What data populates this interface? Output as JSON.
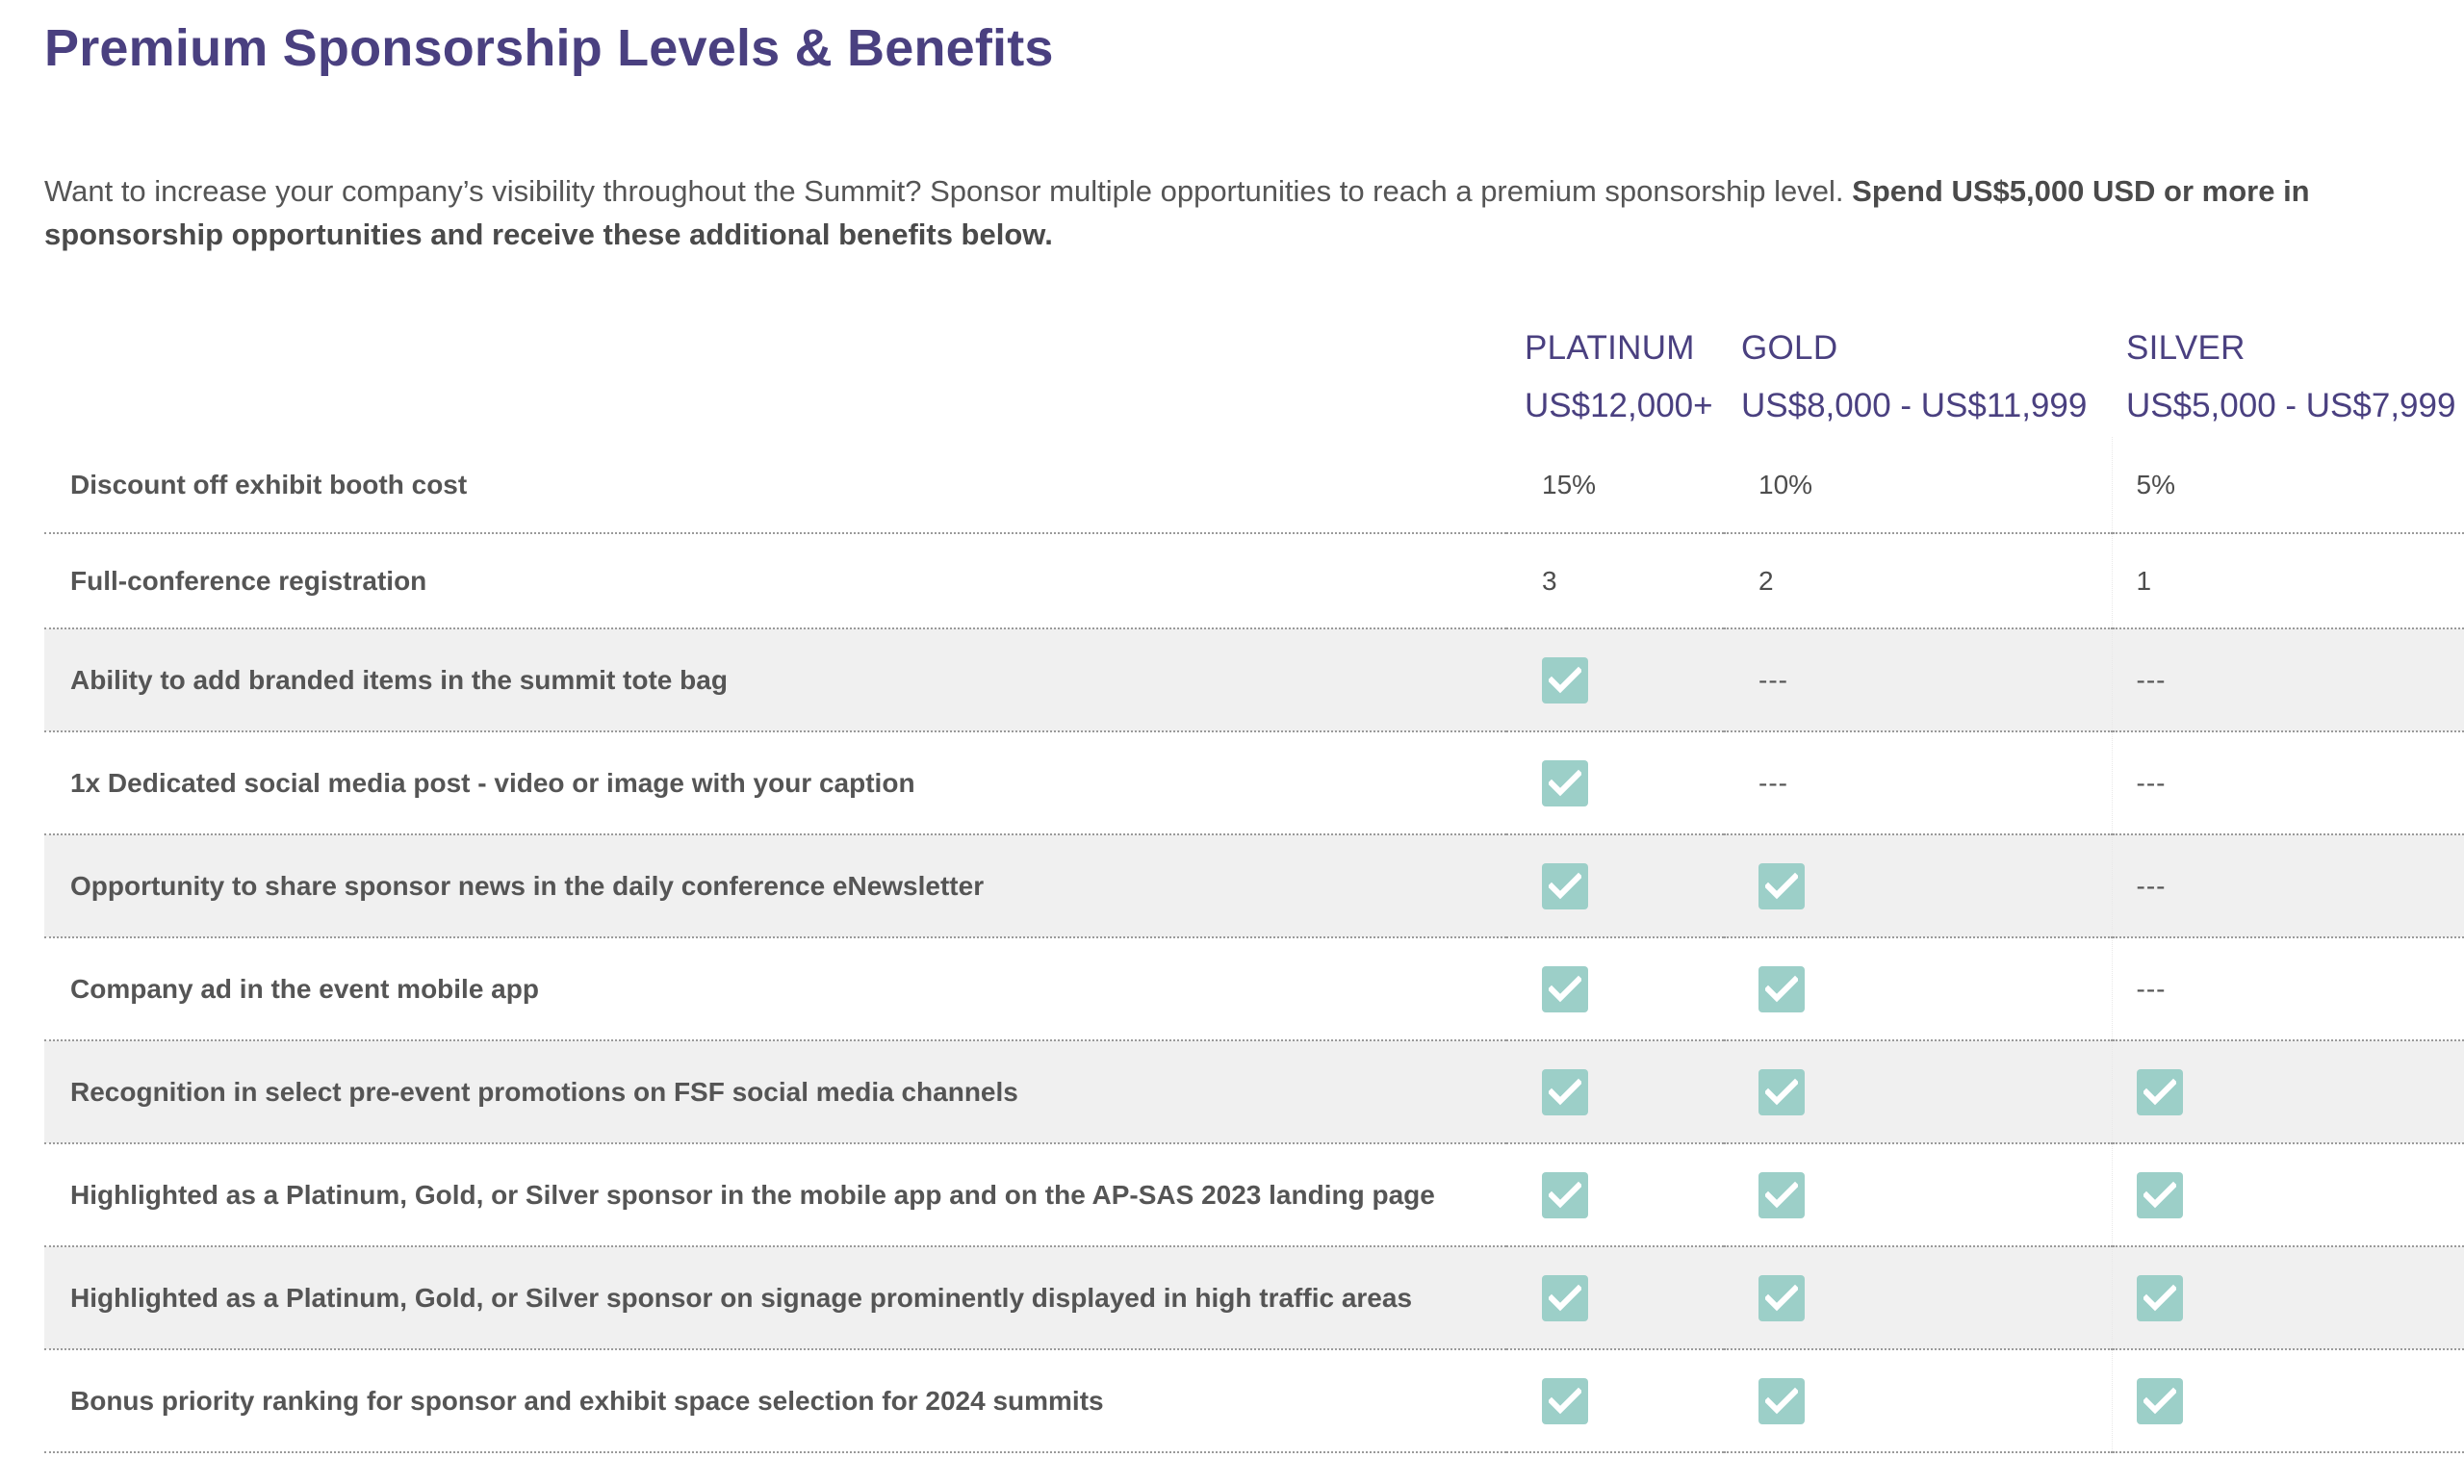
{
  "title": "Premium Sponsorship Levels & Benefits",
  "intro": {
    "text": "Want to increase your company’s visibility throughout the Summit? Sponsor multiple opportunities to reach a premium sponsorship level. ",
    "bold": "Spend US$5,000 USD or more in sponsorship opportunities and receive these additional benefits below."
  },
  "tiers": [
    {
      "name": "PLATINUM",
      "price": "US$12,000+"
    },
    {
      "name": "GOLD",
      "price": "US$8,000 - US$11,999"
    },
    {
      "name": "SILVER",
      "price": "US$5,000 - US$7,999"
    }
  ],
  "dash_text": "---",
  "colors": {
    "heading": "#4a4080",
    "check": "#9ccfc8",
    "row_shaded": "#f0f0f0"
  },
  "rows": [
    {
      "label": "Discount off exhibit booth cost",
      "values": [
        "15%",
        "10%",
        "5%"
      ]
    },
    {
      "label": "Full-conference registration",
      "values": [
        "3",
        "2",
        "1"
      ]
    },
    {
      "label": "Ability to add branded items in the summit tote bag",
      "values": [
        "check",
        "dash",
        "dash"
      ]
    },
    {
      "label": "1x Dedicated social media post - video or image with your caption",
      "values": [
        "check",
        "dash",
        "dash"
      ]
    },
    {
      "label": "Opportunity to share sponsor news in the daily conference eNewsletter",
      "values": [
        "check",
        "check",
        "dash"
      ]
    },
    {
      "label": "Company ad in the event mobile app",
      "values": [
        "check",
        "check",
        "dash"
      ]
    },
    {
      "label": "Recognition in select pre-event promotions on FSF social media channels",
      "values": [
        "check",
        "check",
        "check"
      ]
    },
    {
      "label": "Highlighted as a Platinum, Gold, or Silver sponsor in the mobile app and on the AP-SAS 2023 landing page",
      "values": [
        "check",
        "check",
        "check"
      ]
    },
    {
      "label": "Highlighted as a Platinum, Gold, or Silver sponsor on signage prominently displayed in high traffic areas",
      "values": [
        "check",
        "check",
        "check"
      ]
    },
    {
      "label": "Bonus priority ranking for sponsor and exhibit space selection for 2024 summits",
      "values": [
        "check",
        "check",
        "check"
      ]
    }
  ]
}
